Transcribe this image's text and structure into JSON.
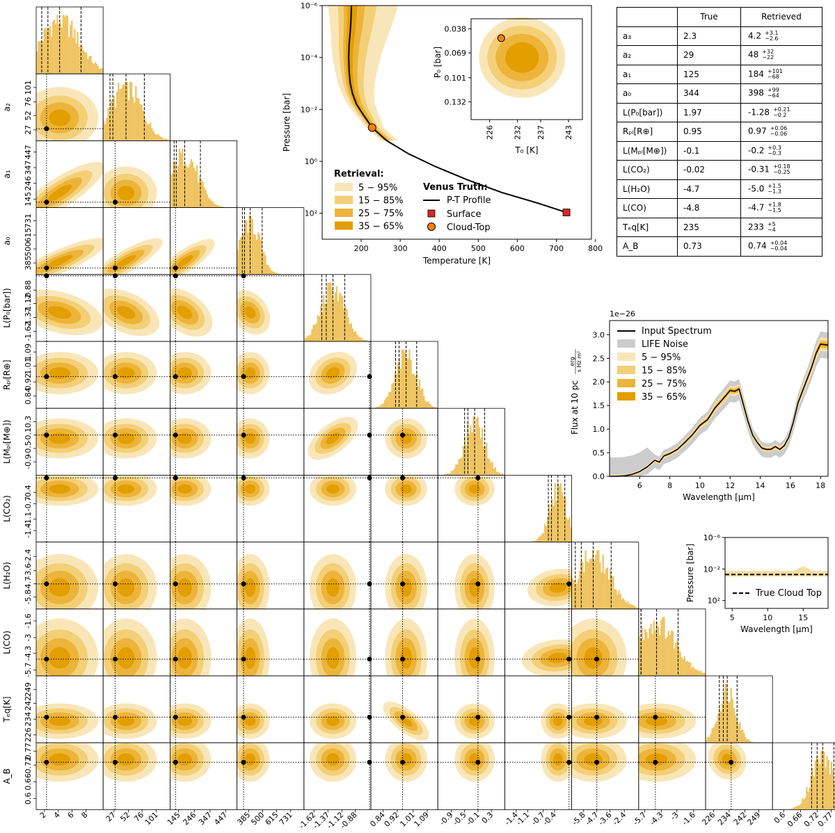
{
  "chart_data": [
    {
      "type": "corner",
      "params": [
        "a₃",
        "a₂",
        "a₁",
        "a₀",
        "L(P₀[bar])",
        "Rₚₗ[R⊕]",
        "L(Mₚₗ[M⊕])",
        "L(CO₂)",
        "L(H₂O)",
        "L(CO)",
        "T_eq[K]",
        "A_B"
      ],
      "axis_labels": [
        "a₃",
        "a₂",
        "a₁",
        "a₀",
        "L(P₀[bar])",
        "Rₚₗ[R⊕]",
        "L(Mₚₗ[M⊕])",
        "L(CO₂)",
        "L(H₂O)",
        "L(CO)",
        "Tₑq[K]",
        "A_B"
      ],
      "ranges": [
        [
          0.8,
          10.5
        ],
        [
          8,
          125
        ],
        [
          90,
          520
        ],
        [
          290,
          840
        ],
        [
          -1.8,
          -0.6
        ],
        [
          0.77,
          1.15
        ],
        [
          -1.3,
          0.7
        ],
        [
          -1.7,
          0.05
        ],
        [
          -6.8,
          -1.2
        ],
        [
          -6.2,
          -0.6
        ],
        [
          222,
          256
        ],
        [
          0.56,
          0.8
        ]
      ],
      "ticks": [
        [
          2.0,
          4.0,
          6.0,
          8.0
        ],
        [
          27,
          52,
          76,
          101
        ],
        [
          145,
          246,
          347,
          447
        ],
        [
          385,
          500,
          615,
          731
        ],
        [
          -1.62,
          -1.37,
          -1.12,
          -0.88
        ],
        [
          0.84,
          0.92,
          1.01,
          1.09
        ],
        [
          -0.9,
          -0.5,
          -0.1,
          0.3
        ],
        [
          -1.4,
          -1.1,
          -0.7,
          -0.4
        ],
        [
          -5.8,
          -4.7,
          -3.6,
          -2.4
        ],
        [
          -5.7,
          -4.3,
          -3.0,
          -1.6
        ],
        [
          226,
          234,
          242,
          249
        ],
        [
          0.6,
          0.66,
          0.72,
          0.77
        ]
      ],
      "truths": [
        2.3,
        29,
        125,
        344,
        1.97,
        0.95,
        -0.1,
        -0.02,
        -4.7,
        -4.8,
        235,
        0.73
      ],
      "quantiles": [
        [
          1.6,
          2.5,
          4.2,
          7.3
        ],
        [
          20,
          25,
          48,
          80
        ],
        [
          116,
          130,
          184,
          285
        ],
        [
          334,
          352,
          398,
          497
        ],
        [
          -1.48,
          -1.4,
          -1.28,
          -1.07
        ],
        [
          0.91,
          0.93,
          0.97,
          1.03
        ],
        [
          -0.5,
          -0.4,
          -0.2,
          0.1
        ],
        [
          -0.56,
          -0.48,
          -0.31,
          -0.13
        ],
        [
          -6.5,
          -6.0,
          -5.0,
          -3.5
        ],
        [
          -6.0,
          -6.0,
          -4.7,
          -2.9
        ],
        [
          229,
          231,
          233,
          238
        ],
        [
          0.7,
          0.72,
          0.74,
          0.78
        ]
      ],
      "retrieved_center": [
        4.2,
        48,
        184,
        398,
        -1.28,
        0.97,
        -0.2,
        -0.31,
        -5.0,
        -4.7,
        233,
        0.74
      ],
      "retrieved_sigma": [
        2.8,
        27,
        85,
        80,
        0.21,
        0.06,
        0.3,
        0.22,
        1.4,
        1.65,
        4.5,
        0.04
      ]
    },
    {
      "type": "line",
      "xlabel": "Temperature [K]",
      "ylabel": "Pressure [bar]",
      "xlim": [
        100,
        790
      ],
      "ylim_log10": [
        -6,
        3
      ],
      "xticks": [
        200,
        300,
        400,
        500,
        600,
        700,
        800
      ],
      "yticks": [
        "10⁻⁶",
        "10⁻⁴",
        "10⁻²",
        "10⁰",
        "10²"
      ],
      "truth_profile": {
        "T": [
          175,
          174,
          172,
          169,
          168,
          169,
          172,
          178,
          188,
          205,
          228,
          265,
          320,
          390,
          470,
          560,
          650,
          726
        ],
        "log10P": [
          -6.0,
          -5.5,
          -5.0,
          -4.5,
          -4.0,
          -3.5,
          -3.0,
          -2.6,
          -2.2,
          -1.8,
          -1.3,
          -0.8,
          -0.3,
          0.2,
          0.7,
          1.2,
          1.6,
          1.97
        ]
      },
      "surface": {
        "T": 726,
        "log10P": 1.97
      },
      "cloud_top": {
        "T": 228,
        "log10P": -1.3
      },
      "inset": {
        "xlabel": "T₀ [K]",
        "ylabel": "P₀ [bar]",
        "xlim": [
          222,
          246
        ],
        "ylim": [
          0.025,
          0.155
        ],
        "xticks": [
          226,
          232,
          237,
          243
        ],
        "yticks": [
          0.038,
          0.069,
          0.101,
          0.132
        ],
        "cloud_top": {
          "T": 228.5,
          "P": 0.05
        }
      },
      "legend_retrieval_title": "Retrieval:",
      "legend_truth_title": "Venus Truth:",
      "legend_retrieval": [
        "5 − 95%",
        "15 − 85%",
        "25 − 75%",
        "35 − 65%"
      ],
      "legend_truth": [
        "P-T Profile",
        "Surface",
        "Cloud-Top"
      ]
    },
    {
      "type": "line",
      "xlabel": "Wavelength [μm]",
      "ylabel": "Flux at 10 pc",
      "ylabel_unit_num": "erg",
      "ylabel_unit_den": "s Hz m²",
      "offset_text": "1e−26",
      "xlim": [
        4.0,
        18.5
      ],
      "ylim": [
        0,
        3.3
      ],
      "xticks": [
        6,
        8,
        10,
        12,
        14,
        16,
        18
      ],
      "yticks": [
        0.0,
        0.5,
        1.0,
        1.5,
        2.0,
        2.5,
        3.0
      ],
      "series": [
        {
          "name": "Input Spectrum",
          "x": [
            4.0,
            4.5,
            5.0,
            5.5,
            6.0,
            6.5,
            7.0,
            7.3,
            7.6,
            8.0,
            8.5,
            9.0,
            9.5,
            10.0,
            10.5,
            11.0,
            11.5,
            12.0,
            12.3,
            12.6,
            12.9,
            13.2,
            13.5,
            13.8,
            14.1,
            14.4,
            14.7,
            15.0,
            15.3,
            15.6,
            15.9,
            16.2,
            16.5,
            16.8,
            17.1,
            17.4,
            17.7,
            18.0,
            18.5
          ],
          "y": [
            0.0,
            0.0,
            0.01,
            0.04,
            0.1,
            0.2,
            0.34,
            0.3,
            0.43,
            0.48,
            0.57,
            0.72,
            0.88,
            1.08,
            1.2,
            1.45,
            1.63,
            1.82,
            1.8,
            1.85,
            1.5,
            1.15,
            0.87,
            0.72,
            0.6,
            0.57,
            0.57,
            0.63,
            0.57,
            0.65,
            0.83,
            1.15,
            1.55,
            1.8,
            2.05,
            2.3,
            2.6,
            2.8,
            2.78
          ]
        }
      ],
      "legend": [
        "Input Spectrum",
        "LIFE Noise",
        "5 − 95%",
        "15 − 85%",
        "25 − 75%",
        "35 − 65%"
      ]
    },
    {
      "type": "line",
      "xlabel": "Wavelength [μm]",
      "ylabel": "Pressure [bar]",
      "xlim": [
        4.0,
        18.5
      ],
      "ylim_log10": [
        -6,
        3
      ],
      "xticks": [
        5,
        10,
        15
      ],
      "yticks": [
        "10⁻⁶",
        "10⁻²",
        "10²"
      ],
      "true_cloud_top_log10P": -1.3,
      "legend": [
        "True Cloud Top"
      ]
    },
    {
      "type": "table",
      "columns": [
        "",
        "True",
        "Retrieved"
      ],
      "rows": [
        {
          "param": "a₃",
          "true": "2.3",
          "ret": "4.2",
          "plus": "+3.1",
          "minus": "−2.6"
        },
        {
          "param": "a₂",
          "true": "29",
          "ret": "48",
          "plus": "+32",
          "minus": "−22"
        },
        {
          "param": "a₁",
          "true": "125",
          "ret": "184",
          "plus": "+101",
          "minus": "−68"
        },
        {
          "param": "a₀",
          "true": "344",
          "ret": "398",
          "plus": "+99",
          "minus": "−64"
        },
        {
          "param": "L(P₀[bar])",
          "true": "1.97",
          "ret": "-1.28",
          "plus": "+0.21",
          "minus": "−0.2"
        },
        {
          "param": "Rₚₗ[R⊕]",
          "true": "0.95",
          "ret": "0.97",
          "plus": "+0.06",
          "minus": "−0.06"
        },
        {
          "param": "L(Mₚₗ[M⊕])",
          "true": "-0.1",
          "ret": "-0.2",
          "plus": "+0.3",
          "minus": "−0.3"
        },
        {
          "param": "L(CO₂)",
          "true": "-0.02",
          "ret": "-0.31",
          "plus": "+0.18",
          "minus": "−0.25"
        },
        {
          "param": "L(H₂O)",
          "true": "-4.7",
          "ret": "-5.0",
          "plus": "+1.5",
          "minus": "−1.3"
        },
        {
          "param": "L(CO)",
          "true": "-4.8",
          "ret": "-4.7",
          "plus": "+1.8",
          "minus": "−1.5"
        },
        {
          "param": "Tₑq[K]",
          "true": "235",
          "ret": "233",
          "plus": "+5",
          "minus": "−4"
        },
        {
          "param": "A_B",
          "true": "0.73",
          "ret": "0.74",
          "plus": "+0.04",
          "minus": "−0.04"
        }
      ]
    }
  ],
  "colors": {
    "c5_95": "#f9e6b8",
    "c15_85": "#f3cf77",
    "c25_75": "#ecb43a",
    "c35_65": "#e39e00",
    "hist": "#efc463",
    "noise": "#cccccc",
    "surface": "#d62728",
    "cloud": "#ff7f0e"
  }
}
